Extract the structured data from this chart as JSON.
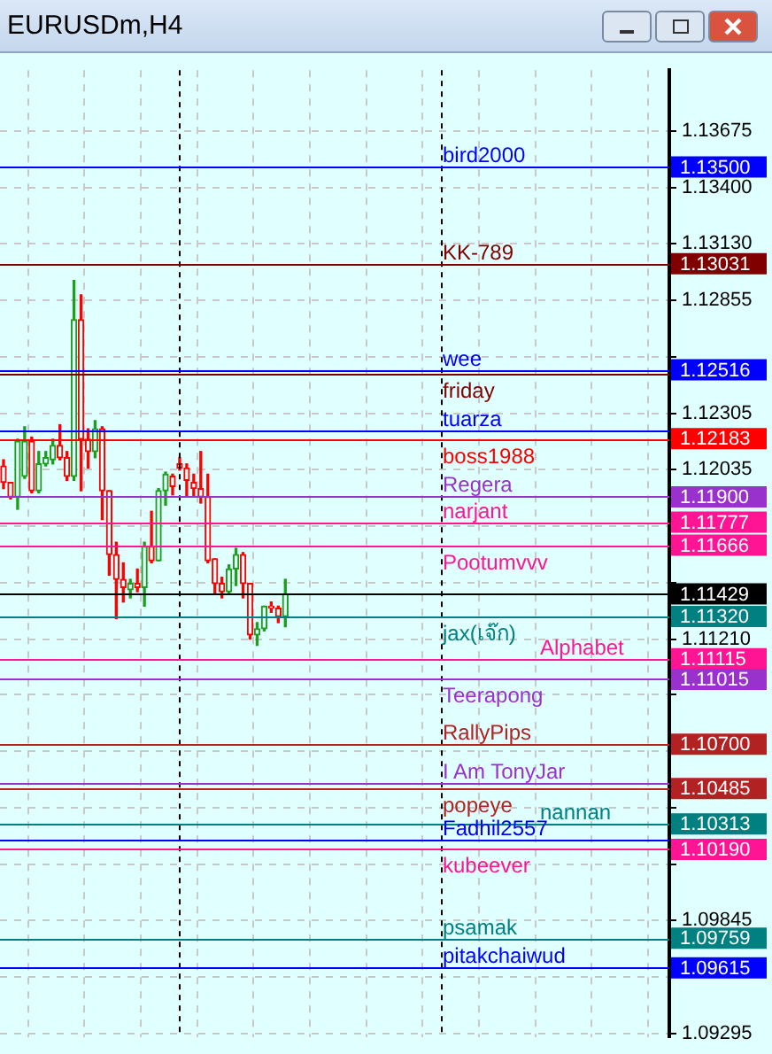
{
  "chart_data": {
    "type": "candlestick",
    "title": "EURUSDm,H4",
    "categories": [
      null,
      null,
      null,
      null,
      null,
      null,
      null,
      null,
      null,
      null,
      null,
      null,
      null,
      null,
      null,
      null,
      null,
      null,
      null,
      null,
      null,
      null,
      null,
      null,
      null,
      null,
      null,
      null,
      null,
      null,
      null,
      null,
      null,
      null,
      null,
      null,
      null,
      null,
      null,
      null,
      null,
      null,
      null,
      null,
      null,
      null,
      null,
      null,
      null,
      null,
      null,
      null,
      null,
      null,
      null,
      null,
      null,
      null,
      null,
      null,
      null,
      null,
      null,
      null,
      null,
      null,
      null,
      null,
      null,
      null,
      null,
      null,
      null,
      null,
      null,
      null,
      null,
      null,
      null,
      null,
      null,
      null,
      null,
      null,
      null,
      null,
      null,
      null,
      null,
      null,
      null,
      null,
      null,
      null,
      null
    ],
    "ohlc": [
      [
        1.1205,
        1.1208,
        1.1194,
        1.1197
      ],
      [
        1.1197,
        1.1197,
        1.1189,
        1.119
      ],
      [
        1.119,
        1.1218,
        1.1184,
        1.1217
      ],
      [
        1.12,
        1.1224,
        1.1199,
        1.1217
      ],
      [
        1.1217,
        1.1219,
        1.1192,
        1.1193
      ],
      [
        1.1193,
        1.1212,
        1.1192,
        1.1206
      ],
      [
        1.1206,
        1.1212,
        1.1205,
        1.1209
      ],
      [
        1.1208,
        1.1218,
        1.1206,
        1.1215
      ],
      [
        1.1215,
        1.1225,
        1.1208,
        1.1209
      ],
      [
        1.1209,
        1.1212,
        1.1198,
        1.12
      ],
      [
        1.12,
        1.1295,
        1.1198,
        1.1276
      ],
      [
        1.1276,
        1.1288,
        1.1193,
        1.1218
      ],
      [
        1.1218,
        1.1223,
        1.1204,
        1.1212
      ],
      [
        1.1212,
        1.1227,
        1.1209,
        1.1223
      ],
      [
        1.1223,
        1.1224,
        1.1179,
        1.1193
      ],
      [
        1.1193,
        1.1193,
        1.1152,
        1.1162
      ],
      [
        1.1162,
        1.1168,
        1.1131,
        1.115
      ],
      [
        1.115,
        1.1158,
        1.1139,
        1.1146
      ],
      [
        1.1145,
        1.115,
        1.1141,
        1.1148
      ],
      [
        1.1148,
        1.1155,
        1.1144,
        1.1146
      ],
      [
        1.1146,
        1.1168,
        1.1137,
        1.1166
      ],
      [
        1.1166,
        1.1183,
        1.1158,
        1.1159
      ],
      [
        1.1159,
        1.1194,
        1.1159,
        1.1193
      ],
      [
        1.1193,
        1.1202,
        1.1186,
        1.1201
      ],
      [
        1.12,
        1.1201,
        1.1191,
        1.1195
      ],
      [
        1.1206,
        1.1209,
        1.1203,
        1.1204
      ],
      [
        1.1204,
        1.1206,
        1.119,
        1.1198
      ],
      [
        1.1197,
        1.1201,
        1.119,
        1.1194
      ],
      [
        1.1194,
        1.1212,
        1.1187,
        1.119
      ],
      [
        1.119,
        1.1201,
        1.1158,
        1.1159
      ],
      [
        1.116,
        1.116,
        1.1143,
        1.1148
      ],
      [
        1.1148,
        1.1151,
        1.1141,
        1.1144
      ],
      [
        1.1144,
        1.1157,
        1.1143,
        1.1155
      ],
      [
        1.1155,
        1.1165,
        1.1147,
        1.1162
      ],
      [
        1.1162,
        1.1163,
        1.1141,
        1.1148
      ],
      [
        1.1148,
        1.1148,
        1.1121,
        1.1123
      ],
      [
        1.1123,
        1.1129,
        1.1118,
        1.1126
      ],
      [
        1.1126,
        1.1137,
        1.1125,
        1.1137
      ],
      [
        1.1137,
        1.1139,
        1.1134,
        1.1136
      ],
      [
        1.1136,
        1.1137,
        1.1129,
        1.1132
      ],
      [
        1.1132,
        1.115,
        1.1127,
        1.1143
      ],
      null,
      null,
      null,
      null,
      null,
      null,
      null,
      null,
      null,
      null,
      null,
      null,
      null,
      null,
      null,
      null,
      null,
      null,
      null,
      null,
      null,
      null,
      null,
      null,
      null,
      null,
      null,
      null,
      null,
      null,
      null,
      null,
      null,
      null,
      null,
      null,
      null,
      null,
      null,
      null,
      null,
      null,
      null,
      null,
      null,
      null,
      null,
      null,
      null,
      null,
      null,
      null,
      null,
      null
    ],
    "ylim": [
      1.0928,
      1.1397
    ],
    "yticks": [
      1.13675,
      {
        "value": 1.134,
        "label": "1.13400"
      },
      {
        "value": 1.1313,
        "label": "1.13130"
      },
      1.12855,
      {
        "value": 1.1258,
        "label": null
      },
      1.12305,
      1.12035,
      {
        "value": 1.1176,
        "label": null
      },
      {
        "value": 1.11485,
        "label": null
      },
      {
        "value": 1.1121,
        "label": "1.11210"
      },
      {
        "value": 1.1094,
        "label": null
      },
      {
        "value": 1.10665,
        "label": null
      },
      {
        "value": 1.1039,
        "label": null
      },
      {
        "value": 1.10115,
        "label": null
      },
      1.09845,
      {
        "value": 1.0957,
        "label": null
      },
      1.09295
    ],
    "grid": true,
    "legend": false,
    "tick_labels": "y",
    "ref_lines": [
      {
        "axis": "y",
        "value": 1.135,
        "label": "1.13500",
        "color": "#0000ff"
      },
      {
        "axis": "y",
        "value": 1.13031,
        "label": "1.13031",
        "color": "#800000"
      },
      {
        "axis": "y",
        "value": 1.12516,
        "label": "1.12516",
        "color": "#0000ff"
      },
      {
        "axis": "y",
        "value": 1.12183,
        "label": "1.12183",
        "color": "#ff0000"
      },
      {
        "axis": "y",
        "value": 1.119,
        "label": "1.11900",
        "color": "#9932cc"
      },
      {
        "axis": "y",
        "value": 1.11777,
        "label": "1.11777",
        "color": "#ff1493"
      },
      {
        "axis": "y",
        "value": 1.11666,
        "label": "1.11666",
        "color": "#ff1493"
      },
      {
        "axis": "y",
        "value": 1.11429,
        "label": "1.11429",
        "color": "#000000"
      },
      {
        "axis": "y",
        "value": 1.1132,
        "label": "1.11320",
        "color": "#008080"
      },
      {
        "axis": "y",
        "value": 1.11115,
        "label": "1.11115",
        "color": "#ff1493"
      },
      {
        "axis": "y",
        "value": 1.11015,
        "label": "1.11015",
        "color": "#9932cc"
      },
      {
        "axis": "y",
        "value": 1.107,
        "label": "1.10700",
        "color": "#b22222"
      },
      {
        "axis": "y",
        "value": 1.10485,
        "label": "1.10485",
        "color": "#b22222"
      },
      {
        "axis": "y",
        "value": 1.10313,
        "label": "1.10313",
        "color": "#008080"
      },
      {
        "axis": "y",
        "value": 1.1019,
        "label": "1.10190",
        "color": "#ff1493"
      },
      {
        "axis": "y",
        "value": 1.09759,
        "label": "1.09759",
        "color": "#008080"
      },
      {
        "axis": "y",
        "value": 1.09615,
        "label": "1.09615",
        "color": "#0000ff"
      },
      {
        "axis": "y",
        "value": 1.125,
        "label": null,
        "color": "#800000"
      },
      {
        "axis": "y",
        "value": 1.1222,
        "label": null,
        "color": "#0000ff"
      },
      {
        "axis": "y",
        "value": 1.1051,
        "label": null,
        "color": "#9932cc"
      },
      {
        "axis": "y",
        "value": 1.1024,
        "label": null,
        "color": "#0000ff"
      }
    ],
    "annotations": [
      {
        "text": "bird2000",
        "y": 1.135
      },
      {
        "text": "KK-789",
        "y": 1.13031
      },
      {
        "text": "wee",
        "y": 1.12516
      },
      {
        "text": "boss1988",
        "y": 1.12183
      },
      {
        "text": "Regera",
        "y": 1.119
      },
      {
        "text": "narjant",
        "y": 1.11777
      },
      {
        "text": "Pootumvvv",
        "y": 1.11666
      },
      {
        "text": "jax(เจ๊ก)",
        "y": 1.1132
      },
      {
        "text": "Alphabet",
        "y": 1.11115
      },
      {
        "text": "Teerapong",
        "y": 1.11015
      },
      {
        "text": "RallyPips",
        "y": 1.107
      },
      {
        "text": "popeye",
        "y": 1.10485
      },
      {
        "text": "nannan",
        "y": 1.10313
      },
      {
        "text": "kubeever",
        "y": 1.1019
      },
      {
        "text": "psamak",
        "y": 1.09759
      },
      {
        "text": "pitakchaiwud",
        "y": 1.09615
      },
      {
        "text": "friday",
        "y": 1.125
      },
      {
        "text": "tuarza",
        "y": 1.1222
      },
      {
        "text": "I Am TonyJar",
        "y": 1.1051
      },
      {
        "text": "Fadhil2557",
        "y": 1.1024
      }
    ]
  }
}
